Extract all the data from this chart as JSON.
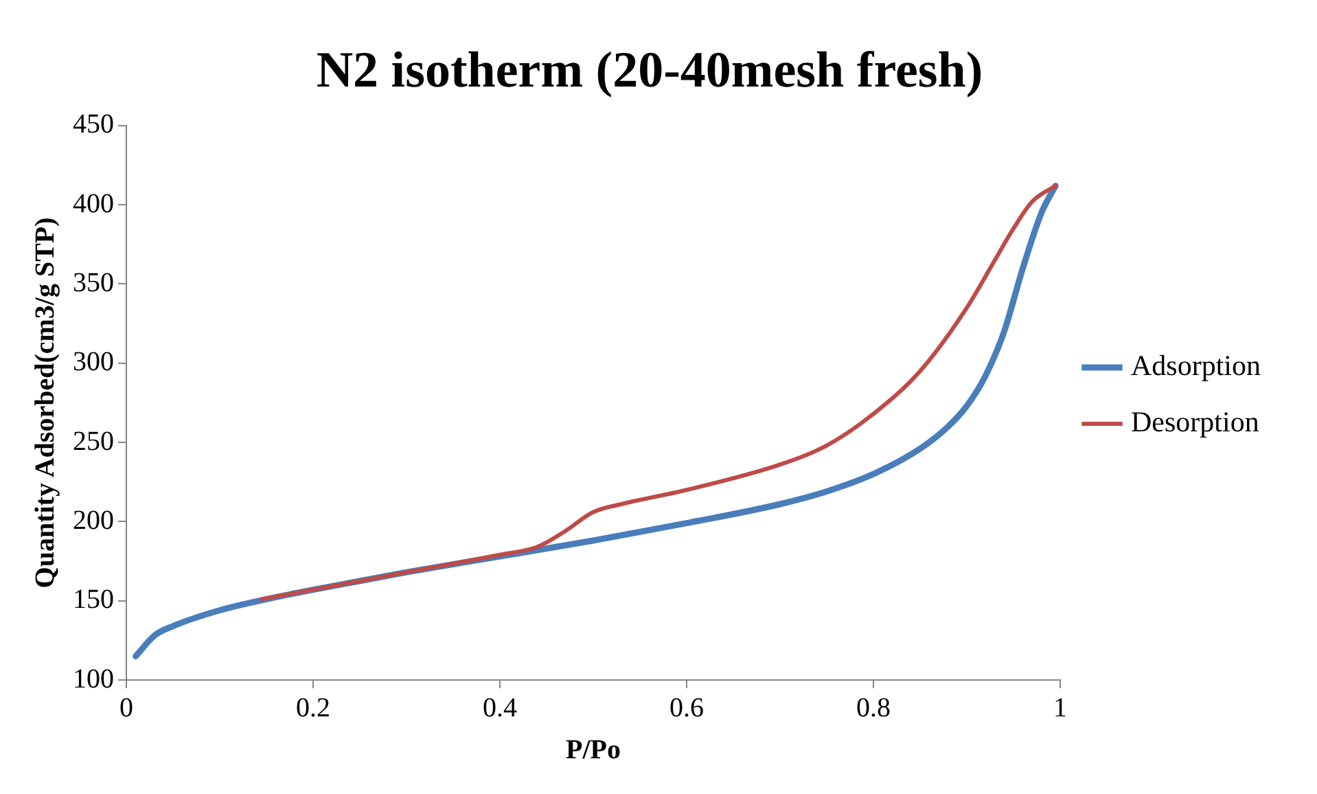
{
  "chart_data": {
    "type": "line",
    "title": "N2 isotherm (20-40mesh fresh)",
    "xlabel": "P/Po",
    "ylabel": "Quantity Adsorbed(cm3/g STP)",
    "xlim": [
      0,
      1
    ],
    "xticks": [
      0,
      0.2,
      0.4,
      0.6,
      0.8,
      1
    ],
    "ylim": [
      100,
      450
    ],
    "yticks": [
      100,
      150,
      200,
      250,
      300,
      350,
      400,
      450
    ],
    "grid": false,
    "legend": "right",
    "marker": "none",
    "line_style": "solid",
    "series": [
      {
        "name": "Adsorption",
        "color": "#4a7ebb",
        "x": [
          0.01,
          0.03,
          0.05,
          0.1,
          0.15,
          0.2,
          0.3,
          0.4,
          0.5,
          0.6,
          0.7,
          0.75,
          0.8,
          0.85,
          0.88,
          0.9,
          0.92,
          0.94,
          0.96,
          0.98,
          0.995
        ],
        "values": [
          115,
          128,
          134,
          144,
          151,
          157,
          168,
          178,
          188,
          199,
          211,
          219,
          230,
          246,
          260,
          273,
          292,
          320,
          360,
          395,
          412
        ]
      },
      {
        "name": "Desorption",
        "color": "#be4b48",
        "x": [
          0.145,
          0.2,
          0.3,
          0.4,
          0.44,
          0.47,
          0.5,
          0.53,
          0.6,
          0.7,
          0.75,
          0.8,
          0.85,
          0.9,
          0.93,
          0.95,
          0.97,
          0.995
        ],
        "values": [
          151,
          157,
          168,
          179,
          184,
          194,
          206,
          211,
          220,
          236,
          248,
          268,
          295,
          335,
          365,
          385,
          402,
          412
        ]
      }
    ]
  }
}
